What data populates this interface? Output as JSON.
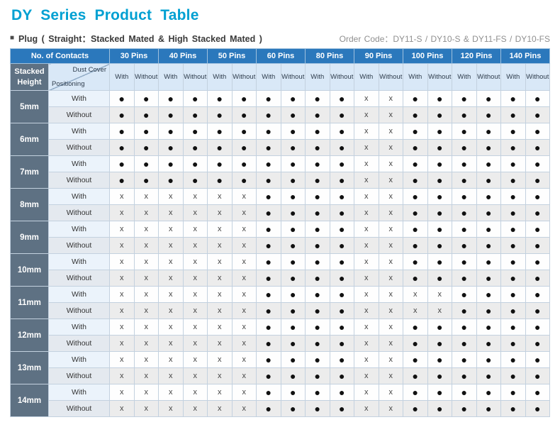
{
  "title": "DY Series Product Table",
  "subtitle": {
    "bullet": "■",
    "left": "Plug ( Straight：Stacked Mated & High Stacked Mated )",
    "right": "Order Code：DY11-S / DY10-S & DY11-FS / DY10-FS"
  },
  "symbols": {
    "dot": "●",
    "x": "x"
  },
  "table": {
    "corner": {
      "no_of_contacts": "No. of Contacts",
      "stacked_height": "Stacked Height",
      "dust_cover": "Dust Cover",
      "positioning": "Positioning"
    },
    "pin_columns": [
      "30 Pins",
      "40 Pins",
      "50 Pins",
      "60 Pins",
      "80 Pins",
      "90 Pins",
      "100 Pins",
      "120 Pins",
      "140 Pins"
    ],
    "sub_columns": [
      "With",
      "Without"
    ],
    "groups": [
      {
        "height": "5mm",
        "rows": [
          {
            "positioning": "With",
            "cells": [
              "dot",
              "dot",
              "dot",
              "dot",
              "dot",
              "dot",
              "dot",
              "dot",
              "dot",
              "dot",
              "x",
              "x",
              "dot",
              "dot",
              "dot",
              "dot",
              "dot",
              "dot"
            ]
          },
          {
            "positioning": "Without",
            "cells": [
              "dot",
              "dot",
              "dot",
              "dot",
              "dot",
              "dot",
              "dot",
              "dot",
              "dot",
              "dot",
              "x",
              "x",
              "dot",
              "dot",
              "dot",
              "dot",
              "dot",
              "dot"
            ]
          }
        ]
      },
      {
        "height": "6mm",
        "rows": [
          {
            "positioning": "With",
            "cells": [
              "dot",
              "dot",
              "dot",
              "dot",
              "dot",
              "dot",
              "dot",
              "dot",
              "dot",
              "dot",
              "x",
              "x",
              "dot",
              "dot",
              "dot",
              "dot",
              "dot",
              "dot"
            ]
          },
          {
            "positioning": "Without",
            "cells": [
              "dot",
              "dot",
              "dot",
              "dot",
              "dot",
              "dot",
              "dot",
              "dot",
              "dot",
              "dot",
              "x",
              "x",
              "dot",
              "dot",
              "dot",
              "dot",
              "dot",
              "dot"
            ]
          }
        ]
      },
      {
        "height": "7mm",
        "rows": [
          {
            "positioning": "With",
            "cells": [
              "dot",
              "dot",
              "dot",
              "dot",
              "dot",
              "dot",
              "dot",
              "dot",
              "dot",
              "dot",
              "x",
              "x",
              "dot",
              "dot",
              "dot",
              "dot",
              "dot",
              "dot"
            ]
          },
          {
            "positioning": "Without",
            "cells": [
              "dot",
              "dot",
              "dot",
              "dot",
              "dot",
              "dot",
              "dot",
              "dot",
              "dot",
              "dot",
              "x",
              "x",
              "dot",
              "dot",
              "dot",
              "dot",
              "dot",
              "dot"
            ]
          }
        ]
      },
      {
        "height": "8mm",
        "rows": [
          {
            "positioning": "With",
            "cells": [
              "x",
              "x",
              "x",
              "x",
              "x",
              "x",
              "dot",
              "dot",
              "dot",
              "dot",
              "x",
              "x",
              "dot",
              "dot",
              "dot",
              "dot",
              "dot",
              "dot"
            ]
          },
          {
            "positioning": "Without",
            "cells": [
              "x",
              "x",
              "x",
              "x",
              "x",
              "x",
              "dot",
              "dot",
              "dot",
              "dot",
              "x",
              "x",
              "dot",
              "dot",
              "dot",
              "dot",
              "dot",
              "dot"
            ]
          }
        ]
      },
      {
        "height": "9mm",
        "rows": [
          {
            "positioning": "With",
            "cells": [
              "x",
              "x",
              "x",
              "x",
              "x",
              "x",
              "dot",
              "dot",
              "dot",
              "dot",
              "x",
              "x",
              "dot",
              "dot",
              "dot",
              "dot",
              "dot",
              "dot"
            ]
          },
          {
            "positioning": "Without",
            "cells": [
              "x",
              "x",
              "x",
              "x",
              "x",
              "x",
              "dot",
              "dot",
              "dot",
              "dot",
              "x",
              "x",
              "dot",
              "dot",
              "dot",
              "dot",
              "dot",
              "dot"
            ]
          }
        ]
      },
      {
        "height": "10mm",
        "rows": [
          {
            "positioning": "With",
            "cells": [
              "x",
              "x",
              "x",
              "x",
              "x",
              "x",
              "dot",
              "dot",
              "dot",
              "dot",
              "x",
              "x",
              "dot",
              "dot",
              "dot",
              "dot",
              "dot",
              "dot"
            ]
          },
          {
            "positioning": "Without",
            "cells": [
              "x",
              "x",
              "x",
              "x",
              "x",
              "x",
              "dot",
              "dot",
              "dot",
              "dot",
              "x",
              "x",
              "dot",
              "dot",
              "dot",
              "dot",
              "dot",
              "dot"
            ]
          }
        ]
      },
      {
        "height": "11mm",
        "rows": [
          {
            "positioning": "With",
            "cells": [
              "x",
              "x",
              "x",
              "x",
              "x",
              "x",
              "dot",
              "dot",
              "dot",
              "dot",
              "x",
              "x",
              "x",
              "x",
              "dot",
              "dot",
              "dot",
              "dot"
            ]
          },
          {
            "positioning": "Without",
            "cells": [
              "x",
              "x",
              "x",
              "x",
              "x",
              "x",
              "dot",
              "dot",
              "dot",
              "dot",
              "x",
              "x",
              "x",
              "x",
              "dot",
              "dot",
              "dot",
              "dot"
            ]
          }
        ]
      },
      {
        "height": "12mm",
        "rows": [
          {
            "positioning": "With",
            "cells": [
              "x",
              "x",
              "x",
              "x",
              "x",
              "x",
              "dot",
              "dot",
              "dot",
              "dot",
              "x",
              "x",
              "dot",
              "dot",
              "dot",
              "dot",
              "dot",
              "dot"
            ]
          },
          {
            "positioning": "Without",
            "cells": [
              "x",
              "x",
              "x",
              "x",
              "x",
              "x",
              "dot",
              "dot",
              "dot",
              "dot",
              "x",
              "x",
              "dot",
              "dot",
              "dot",
              "dot",
              "dot",
              "dot"
            ]
          }
        ]
      },
      {
        "height": "13mm",
        "rows": [
          {
            "positioning": "With",
            "cells": [
              "x",
              "x",
              "x",
              "x",
              "x",
              "x",
              "dot",
              "dot",
              "dot",
              "dot",
              "x",
              "x",
              "dot",
              "dot",
              "dot",
              "dot",
              "dot",
              "dot"
            ]
          },
          {
            "positioning": "Without",
            "cells": [
              "x",
              "x",
              "x",
              "x",
              "x",
              "x",
              "dot",
              "dot",
              "dot",
              "dot",
              "x",
              "x",
              "dot",
              "dot",
              "dot",
              "dot",
              "dot",
              "dot"
            ]
          }
        ]
      },
      {
        "height": "14mm",
        "rows": [
          {
            "positioning": "With",
            "cells": [
              "x",
              "x",
              "x",
              "x",
              "x",
              "x",
              "dot",
              "dot",
              "dot",
              "dot",
              "x",
              "x",
              "dot",
              "dot",
              "dot",
              "dot",
              "dot",
              "dot"
            ]
          },
          {
            "positioning": "Without",
            "cells": [
              "x",
              "x",
              "x",
              "x",
              "x",
              "x",
              "dot",
              "dot",
              "dot",
              "dot",
              "x",
              "x",
              "dot",
              "dot",
              "dot",
              "dot",
              "dot",
              "dot"
            ]
          }
        ]
      }
    ]
  }
}
